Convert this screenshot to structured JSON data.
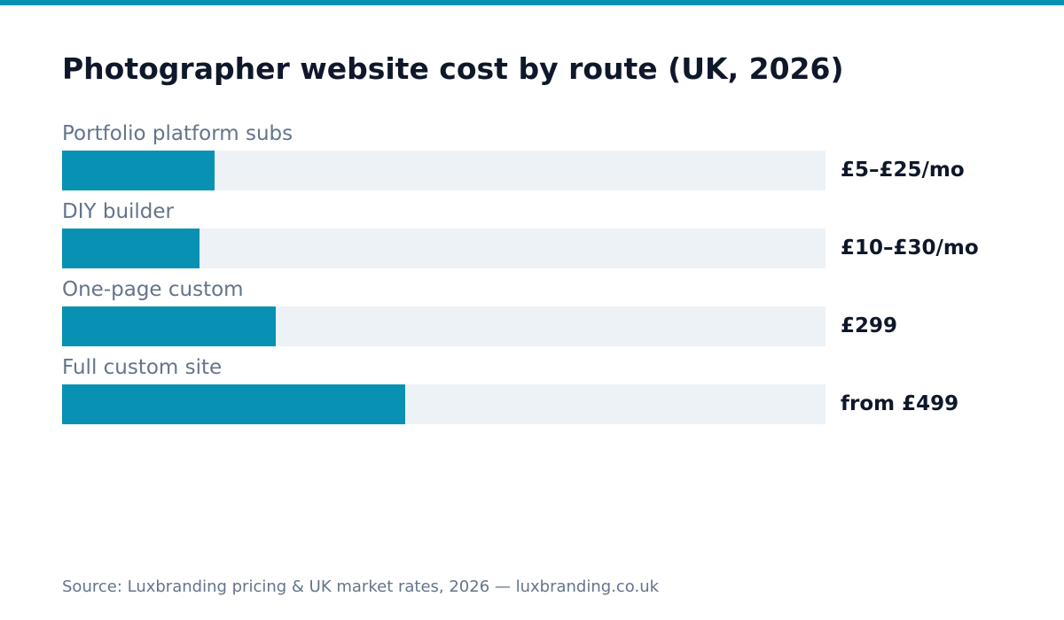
{
  "colors": {
    "accent": "#0891b2",
    "track": "#edf2f7",
    "title": "#0f172a",
    "muted": "#64748b"
  },
  "chart_data": {
    "type": "bar",
    "orientation": "horizontal",
    "title": "Photographer website cost by route (UK, 2026)",
    "categories": [
      "Portfolio platform subs",
      "DIY builder",
      "One-page custom",
      "Full custom site"
    ],
    "values": [
      0.2,
      0.18,
      0.28,
      0.45
    ],
    "value_labels": [
      "£5–£25/mo",
      "£10–£30/mo",
      "£299",
      "from £499"
    ],
    "xlim": [
      0,
      1
    ],
    "grid": false,
    "source": "Source: Luxbranding pricing & UK market rates, 2026 — luxbranding.co.uk"
  }
}
